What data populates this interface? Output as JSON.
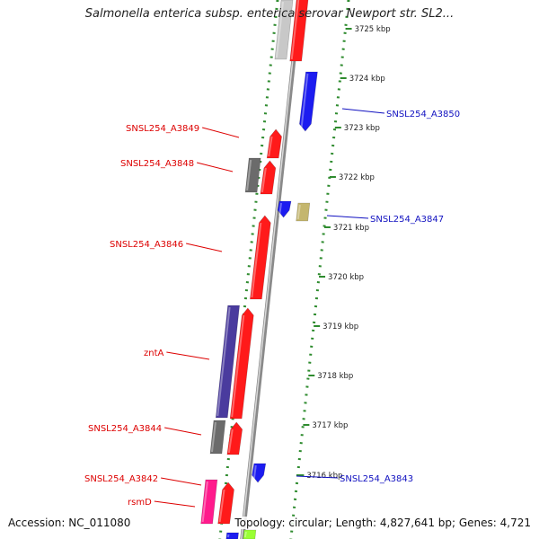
{
  "header": {
    "title": "Salmonella enterica subsp. enterica serovar Newport str. SL2..."
  },
  "footer": {
    "accession": "Accession: NC_011080",
    "summary": "Topology: circular; Length: 4,827,641 bp; Genes: 4,721"
  },
  "colors": {
    "red": "#ff1a1a",
    "blue": "#1c1cf0",
    "gray": "#6b6b6b",
    "light_gray": "#c8c8c8",
    "purple": "#4a3b9e",
    "khaki": "#c4b66e",
    "magenta": "#ff1a8c",
    "lime": "#99ff33",
    "backbone": "#8a8a8a",
    "tick_green": "#2e8b2e",
    "left_label": "#dd0000",
    "right_label": "#1010c0"
  },
  "ticks": [
    {
      "label": "3725 kbp"
    },
    {
      "label": "3724 kbp"
    },
    {
      "label": "3723 kbp"
    },
    {
      "label": "3722 kbp"
    },
    {
      "label": "3721 kbp"
    },
    {
      "label": "3720 kbp"
    },
    {
      "label": "3719 kbp"
    },
    {
      "label": "3718 kbp"
    },
    {
      "label": "3717 kbp"
    },
    {
      "label": "3716 kbp"
    }
  ],
  "left_labels": [
    {
      "text": "SNSL254_A3849"
    },
    {
      "text": "SNSL254_A3848"
    },
    {
      "text": "SNSL254_A3846"
    },
    {
      "text": "zntA"
    },
    {
      "text": "SNSL254_A3844"
    },
    {
      "text": "SNSL254_A3842"
    },
    {
      "text": "rsmD"
    }
  ],
  "right_labels": [
    {
      "text": "SNSL254_A3850"
    },
    {
      "text": "SNSL254_A3847"
    },
    {
      "text": "SNSL254_A3843"
    }
  ]
}
